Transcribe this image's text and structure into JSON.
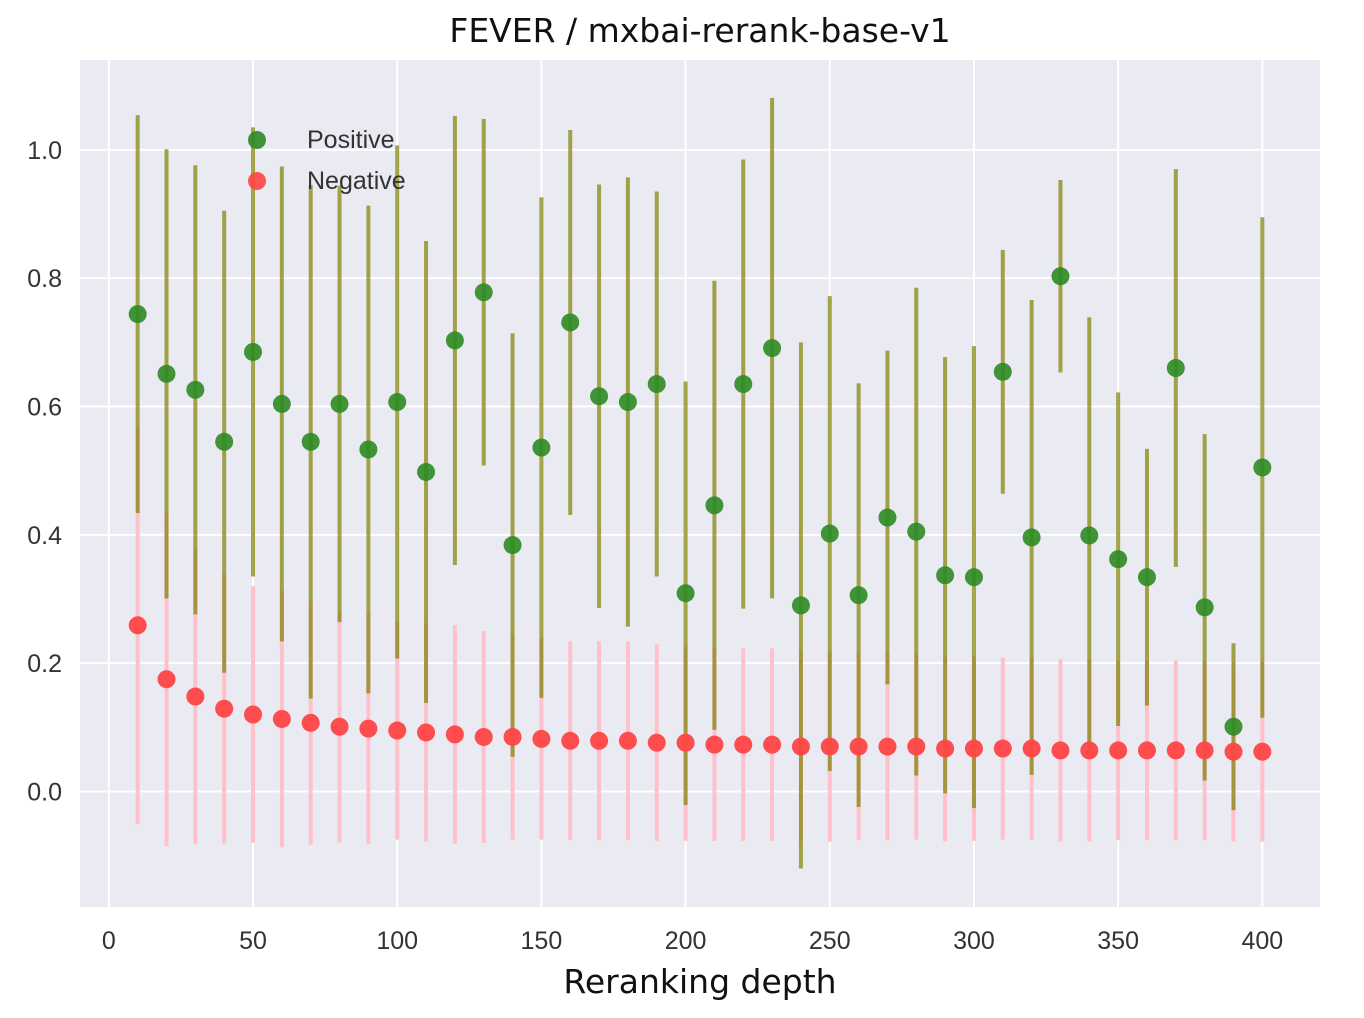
{
  "chart_data": {
    "type": "scatter",
    "title": "FEVER / mxbai-rerank-base-v1",
    "xlabel": "Reranking depth",
    "ylabel": "",
    "xlim": [
      -10,
      420
    ],
    "ylim": [
      -0.18,
      1.14
    ],
    "xticks": [
      0,
      50,
      100,
      150,
      200,
      250,
      300,
      350,
      400
    ],
    "yticks": [
      0.0,
      0.2,
      0.4,
      0.6,
      0.8,
      1.0
    ],
    "ytick_labels": [
      "0.0",
      "0.2",
      "0.4",
      "0.6",
      "0.8",
      "1.0"
    ],
    "grid": true,
    "legend_position": "top-left",
    "x": [
      10,
      20,
      30,
      40,
      50,
      60,
      70,
      80,
      90,
      100,
      110,
      120,
      130,
      140,
      150,
      160,
      170,
      180,
      190,
      200,
      210,
      220,
      230,
      240,
      250,
      260,
      270,
      280,
      290,
      300,
      310,
      320,
      330,
      340,
      350,
      360,
      370,
      380,
      390,
      400
    ],
    "series": [
      {
        "name": "Positive",
        "color": "#2e8b22",
        "errorbar_color": "#808000",
        "values": [
          0.744,
          0.651,
          0.626,
          0.545,
          0.685,
          0.604,
          0.545,
          0.604,
          0.533,
          0.607,
          0.498,
          0.703,
          0.778,
          0.384,
          0.536,
          0.731,
          0.616,
          0.607,
          0.635,
          0.309,
          0.446,
          0.635,
          0.691,
          0.29,
          0.402,
          0.306,
          0.427,
          0.405,
          0.337,
          0.334,
          0.654,
          0.396,
          0.803,
          0.399,
          0.362,
          0.334,
          0.66,
          0.287,
          0.101,
          0.505
        ],
        "errors": [
          0.31,
          0.35,
          0.35,
          0.36,
          0.35,
          0.37,
          0.4,
          0.34,
          0.38,
          0.4,
          0.36,
          0.35,
          0.27,
          0.33,
          0.39,
          0.3,
          0.33,
          0.35,
          0.3,
          0.33,
          0.35,
          0.35,
          0.39,
          0.41,
          0.37,
          0.33,
          0.26,
          0.38,
          0.34,
          0.36,
          0.19,
          0.37,
          0.15,
          0.34,
          0.26,
          0.2,
          0.31,
          0.27,
          0.13,
          0.39
        ]
      },
      {
        "name": "Negative",
        "color": "#ff4444",
        "errorbar_color": "#ffc0cb",
        "values": [
          0.259,
          0.175,
          0.148,
          0.129,
          0.12,
          0.113,
          0.107,
          0.101,
          0.098,
          0.095,
          0.092,
          0.089,
          0.085,
          0.085,
          0.082,
          0.079,
          0.079,
          0.079,
          0.076,
          0.076,
          0.073,
          0.073,
          0.073,
          0.07,
          0.07,
          0.07,
          0.07,
          0.07,
          0.067,
          0.067,
          0.067,
          0.067,
          0.064,
          0.064,
          0.064,
          0.064,
          0.064,
          0.064,
          0.062,
          0.062
        ],
        "errors": [
          0.31,
          0.26,
          0.23,
          0.21,
          0.2,
          0.2,
          0.19,
          0.18,
          0.18,
          0.17,
          0.17,
          0.17,
          0.165,
          0.16,
          0.157,
          0.155,
          0.155,
          0.155,
          0.153,
          0.153,
          0.15,
          0.15,
          0.15,
          0.148,
          0.148,
          0.146,
          0.146,
          0.145,
          0.145,
          0.144,
          0.142,
          0.142,
          0.142,
          0.142,
          0.14,
          0.14,
          0.14,
          0.14,
          0.14,
          0.14
        ]
      }
    ]
  }
}
